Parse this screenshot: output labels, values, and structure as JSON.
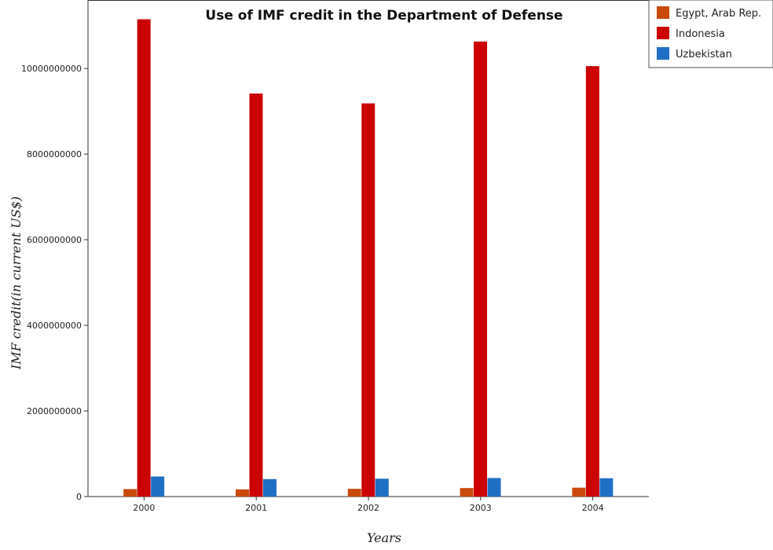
{
  "chart_data": {
    "type": "bar",
    "title": "Use of IMF credit in the Department of Defense",
    "xlabel": "Years",
    "ylabel": "IMF credit(in current US$)",
    "categories": [
      "2000",
      "2001",
      "2002",
      "2003",
      "2004"
    ],
    "ylim": [
      0,
      11600000000
    ],
    "yticks": [
      0,
      2000000000,
      4000000000,
      6000000000,
      8000000000,
      10000000000
    ],
    "ytick_labels": [
      "0",
      "2000000000",
      "4000000000",
      "6000000000",
      "8000000000",
      "10000000000"
    ],
    "grid": false,
    "legend_position": "top-right",
    "series": [
      {
        "name": "Egypt, Arab Rep.",
        "color": "#c94a0c",
        "values": [
          175000000,
          168000000,
          181000000,
          199000000,
          208000000
        ]
      },
      {
        "name": "Indonesia",
        "color": "#cc0000",
        "values": [
          11150000000,
          9415000000,
          9185000000,
          10630000000,
          10055000000
        ]
      },
      {
        "name": "Uzbekistan",
        "color": "#1f6fc5",
        "values": [
          468000000,
          408000000,
          418000000,
          433000000,
          428000000
        ]
      }
    ]
  }
}
